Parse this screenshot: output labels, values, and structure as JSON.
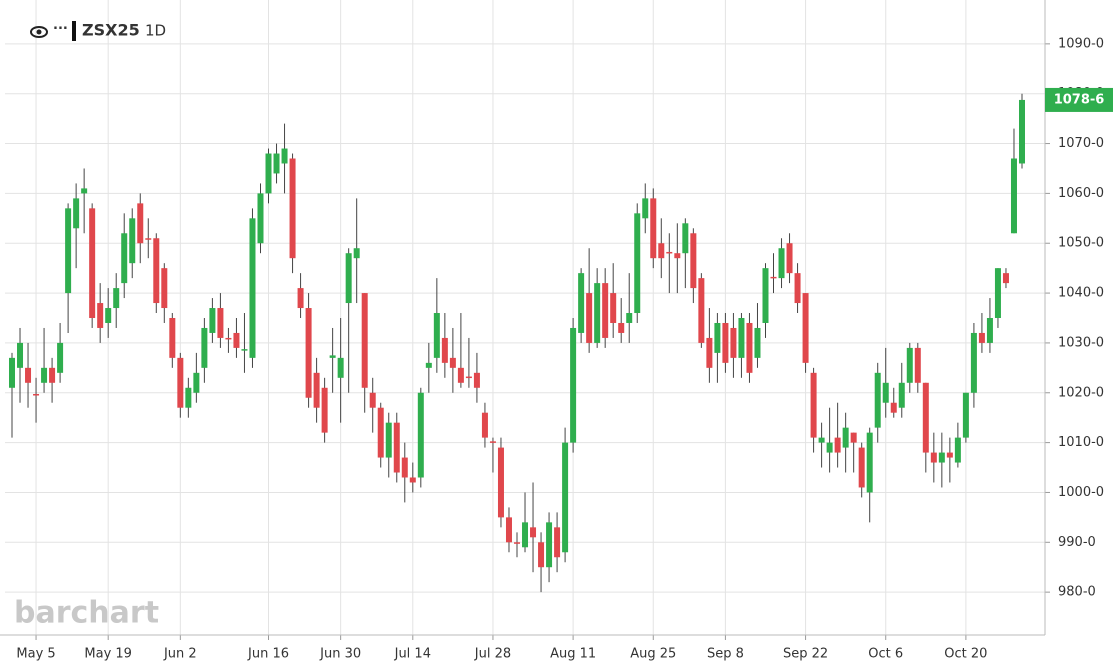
{
  "chart_data": {
    "type": "candlestick",
    "title": "ZSX25",
    "interval": "1D",
    "watermark": "barchart",
    "up_color": "#2fae4e",
    "down_color": "#e0474c",
    "ylim": [
      971.4,
      1098.8
    ],
    "yticks": [
      {
        "value": 980,
        "label": "980-0"
      },
      {
        "value": 990,
        "label": "990-0"
      },
      {
        "value": 1000,
        "label": "1000-0"
      },
      {
        "value": 1010,
        "label": "1010-0"
      },
      {
        "value": 1020,
        "label": "1020-0"
      },
      {
        "value": 1030,
        "label": "1030-0"
      },
      {
        "value": 1040,
        "label": "1040-0"
      },
      {
        "value": 1050,
        "label": "1050-0"
      },
      {
        "value": 1060,
        "label": "1060-0"
      },
      {
        "value": 1070,
        "label": "1070-0"
      },
      {
        "value": 1080,
        "label": "1080-0"
      },
      {
        "value": 1090,
        "label": "1090-0"
      }
    ],
    "last_price": {
      "value": 1078.75,
      "label": "1078-6"
    },
    "categories": [
      null,
      null,
      null,
      "May 5",
      null,
      null,
      null,
      null,
      null,
      null,
      null,
      null,
      "May 19",
      null,
      null,
      null,
      null,
      null,
      null,
      null,
      null,
      "Jun 2",
      null,
      null,
      null,
      null,
      null,
      null,
      null,
      null,
      null,
      null,
      "Jun 16",
      null,
      null,
      null,
      null,
      null,
      null,
      null,
      null,
      "Jun 30",
      null,
      null,
      null,
      null,
      null,
      null,
      null,
      null,
      "Jul 14",
      null,
      null,
      null,
      null,
      null,
      null,
      null,
      null,
      null,
      "Jul 28",
      null,
      null,
      null,
      null,
      null,
      null,
      null,
      null,
      null,
      "Aug 11",
      null,
      null,
      null,
      null,
      null,
      null,
      null,
      null,
      null,
      "Aug 25",
      null,
      null,
      null,
      null,
      null,
      null,
      null,
      null,
      "Sep 8",
      null,
      null,
      null,
      null,
      null,
      null,
      null,
      null,
      null,
      "Sep 22",
      null,
      null,
      null,
      null,
      null,
      null,
      null,
      null,
      null,
      "Oct 6",
      null,
      null,
      null,
      null,
      null,
      null,
      null,
      null,
      null,
      "Oct 20",
      null,
      null,
      null,
      null,
      null,
      null,
      null
    ],
    "open": [
      1021,
      1025,
      1025,
      1019.75,
      1022,
      1025,
      1024,
      1040,
      1053,
      1060,
      1057,
      1038,
      1034,
      1037,
      1042,
      1046,
      1058,
      1051,
      1051,
      1045,
      1035,
      1027,
      1017,
      1020,
      1025,
      1032,
      1037,
      1031,
      1032,
      1028.5,
      1027,
      1050,
      1060,
      1064,
      1066,
      1067,
      1041,
      1037,
      1024,
      1021,
      1027,
      1023,
      1038,
      1047,
      1040,
      1020,
      1017,
      1007,
      1014,
      1007,
      1003,
      1003,
      1025,
      1027,
      1031,
      1027,
      1025,
      1023.25,
      1024,
      1016,
      1010.25,
      1009,
      995,
      990,
      989,
      993,
      990,
      985,
      993,
      988,
      1010,
      1032,
      1040,
      1030,
      1042,
      1040,
      1034,
      1034,
      1036,
      1055,
      1059,
      1050,
      1048.25,
      1048,
      1048,
      1052,
      1043,
      1031,
      1028,
      1034,
      1033,
      1027,
      1034,
      1027,
      1034,
      1043.25,
      1043,
      1050,
      1044,
      1040,
      1024,
      1010,
      1008,
      1011,
      1009,
      1012,
      1009,
      1000,
      1013,
      1018,
      1018,
      1017,
      1022,
      1029,
      1022,
      1008,
      1006,
      1008,
      1006,
      1011,
      1020,
      1032,
      1030,
      1035,
      1044,
      1052,
      1066
    ],
    "high": [
      1028,
      1033,
      1030,
      1023,
      1033,
      1027,
      1034,
      1058,
      1062,
      1065,
      1058,
      1042,
      1041,
      1044,
      1056,
      1057,
      1060,
      1055,
      1052,
      1046,
      1036,
      1028,
      1023,
      1028,
      1035,
      1039,
      1040,
      1033,
      1035,
      1036,
      1057,
      1062,
      1069,
      1070,
      1074,
      1068,
      1044,
      1040,
      1027,
      1023,
      1033,
      1035,
      1049,
      1059,
      1040,
      1023,
      1018,
      1016,
      1016,
      1010,
      1006,
      1021,
      1030,
      1043,
      1036,
      1033,
      1036,
      1031,
      1028,
      1018,
      1011,
      1011,
      997,
      992,
      1000,
      1002,
      992,
      996,
      996,
      1013,
      1035,
      1045,
      1049,
      1045,
      1045,
      1046,
      1039,
      1044,
      1058,
      1062,
      1061,
      1055,
      1052,
      1054,
      1055,
      1053,
      1044,
      1037,
      1036,
      1036,
      1036,
      1036,
      1036,
      1038,
      1046,
      1048,
      1051,
      1052,
      1046,
      1040,
      1025,
      1014,
      1017,
      1018,
      1016,
      1012,
      1010,
      1013,
      1026,
      1029,
      1021,
      1026,
      1030,
      1030,
      1022,
      1012,
      1012,
      1011,
      1014,
      1020,
      1034,
      1036,
      1039,
      1045,
      1045,
      1073,
      1080
    ],
    "low": [
      1011,
      1018,
      1017,
      1014,
      1020,
      1018,
      1022,
      1032,
      1045,
      1052,
      1033,
      1030,
      1031,
      1033,
      1039,
      1043,
      1046,
      1047,
      1036,
      1034,
      1025,
      1015,
      1015,
      1018,
      1022,
      1030,
      1029,
      1028,
      1027,
      1024,
      1025,
      1048,
      1058,
      1062,
      1060,
      1044,
      1035,
      1017,
      1014,
      1010,
      1020,
      1014,
      1020,
      1038,
      1016,
      1012,
      1005,
      1003,
      1002,
      998,
      1000,
      1001,
      1020,
      1024,
      1023,
      1020,
      1021,
      1021,
      1018,
      1009,
      1004,
      993,
      988,
      987,
      988,
      984,
      980,
      982,
      984,
      986,
      1008,
      1030,
      1028,
      1029,
      1029,
      1031,
      1030,
      1030,
      1034,
      1052,
      1045,
      1043,
      1040,
      1040,
      1041,
      1038,
      1029,
      1022,
      1022,
      1024,
      1023,
      1023,
      1022,
      1025,
      1031,
      1040,
      1041,
      1042,
      1036,
      1024,
      1008,
      1005,
      1004,
      1005,
      1004,
      1004,
      999,
      994,
      1010,
      1015,
      1015,
      1015,
      1020,
      1020,
      1004,
      1002,
      1001,
      1002,
      1005,
      1010,
      1017,
      1028,
      1028,
      1033,
      1041,
      1052,
      1065
    ],
    "close": [
      1027,
      1030,
      1022,
      1019.5,
      1025,
      1022,
      1030,
      1057,
      1059,
      1061,
      1035,
      1033,
      1037,
      1041,
      1052,
      1055,
      1050,
      1050.75,
      1038,
      1037,
      1027,
      1017,
      1021,
      1024,
      1033,
      1037,
      1031,
      1030.75,
      1029,
      1028.75,
      1055,
      1060,
      1068,
      1068,
      1069,
      1047,
      1037,
      1019,
      1017,
      1012,
      1027.5,
      1027,
      1048,
      1049,
      1021,
      1017,
      1007,
      1014,
      1004,
      1003,
      1002,
      1020,
      1026,
      1036,
      1026,
      1025,
      1022,
      1023,
      1021,
      1011,
      1010,
      995,
      990,
      989.75,
      994,
      991,
      985,
      994,
      987,
      1010,
      1033,
      1044,
      1030,
      1042,
      1031,
      1034,
      1032,
      1036,
      1056,
      1059,
      1047,
      1047,
      1048,
      1047,
      1054,
      1041,
      1030,
      1025,
      1034,
      1026,
      1027,
      1035,
      1024,
      1033,
      1045,
      1043,
      1049,
      1044,
      1038,
      1026,
      1011,
      1011,
      1010,
      1008,
      1013,
      1010,
      1001,
      1012,
      1024,
      1022,
      1016,
      1022,
      1029,
      1022,
      1008,
      1006,
      1008,
      1007,
      1011,
      1020,
      1032,
      1030,
      1035,
      1045,
      1042,
      1067,
      1078.75
    ]
  }
}
